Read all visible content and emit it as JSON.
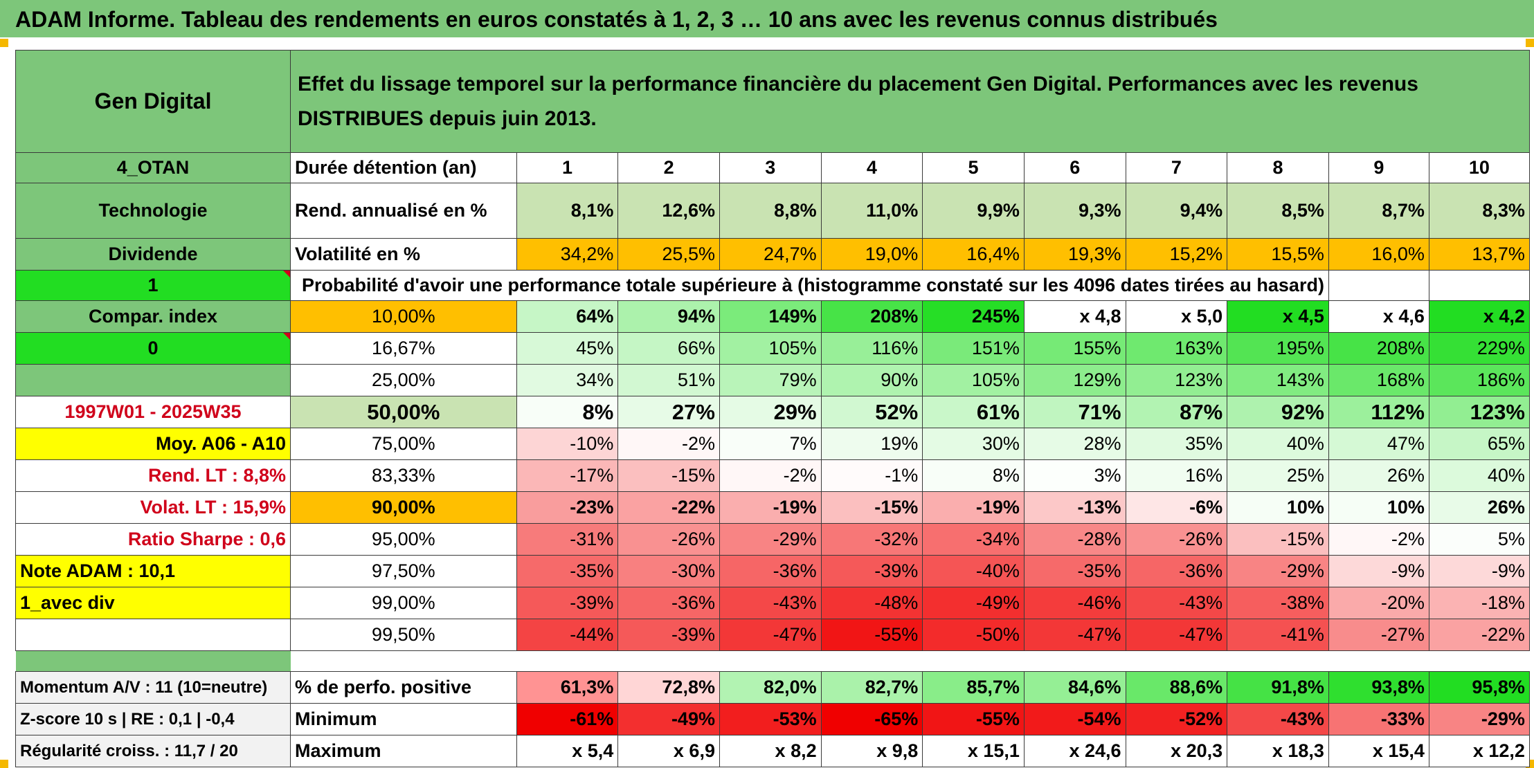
{
  "title": "ADAM Informe. Tableau des rendements en euros constatés à 1, 2, 3 … 10 ans avec les revenus connus distribués",
  "header": {
    "company": "Gen Digital",
    "description": "Effet du lissage temporel sur la performance financière du placement Gen Digital. Performances avec les revenus DISTRIBUES depuis juin 2013."
  },
  "labels": {
    "code": "4_OTAN",
    "sector": "Technologie",
    "dividend": "Dividende",
    "one": "1",
    "compar_index": "Compar. index",
    "zero": "0",
    "period": "1997W01 - 2025W35",
    "moy": "Moy. A06 - A10",
    "rend_lt": "Rend. LT :   8,8%",
    "volat_lt": "Volat. LT :   15,9%",
    "sharpe": "Ratio Sharpe :   0,6",
    "note_adam": "Note ADAM : 10,1",
    "avec_div": "1_avec div",
    "momentum": "Momentum A/V : 11 (10=neutre)",
    "zscore": "Z-score 10 s | RE : 0,1 | -0,4",
    "regularite": "Régularité croiss. : 11,7 / 20"
  },
  "rows": {
    "duree_label": "Durée détention (an)",
    "years": [
      "1",
      "2",
      "3",
      "4",
      "5",
      "6",
      "7",
      "8",
      "9",
      "10"
    ],
    "rend_label": "Rend. annualisé en %",
    "rend": [
      "8,1%",
      "12,6%",
      "8,8%",
      "11,0%",
      "9,9%",
      "9,3%",
      "9,4%",
      "8,5%",
      "8,7%",
      "8,3%"
    ],
    "vol_label": "Volatilité en %",
    "vol": [
      "34,2%",
      "25,5%",
      "24,7%",
      "19,0%",
      "16,4%",
      "19,3%",
      "15,2%",
      "15,5%",
      "16,0%",
      "13,7%"
    ],
    "prob_label": "Probabilité d'avoir une performance totale supérieure à (histogramme constaté sur les 4096 dates tirées au hasard)",
    "percentiles": [
      {
        "p": "10,00%",
        "v": [
          "64%",
          "94%",
          "149%",
          "208%",
          "245%",
          "x 4,8",
          "x 5,0",
          "x 4,5",
          "x 4,6",
          "x 4,2"
        ]
      },
      {
        "p": "16,67%",
        "v": [
          "45%",
          "66%",
          "105%",
          "116%",
          "151%",
          "155%",
          "163%",
          "195%",
          "208%",
          "229%"
        ]
      },
      {
        "p": "25,00%",
        "v": [
          "34%",
          "51%",
          "79%",
          "90%",
          "105%",
          "129%",
          "123%",
          "143%",
          "168%",
          "186%"
        ]
      },
      {
        "p": "50,00%",
        "v": [
          "8%",
          "27%",
          "29%",
          "52%",
          "61%",
          "71%",
          "87%",
          "92%",
          "112%",
          "123%"
        ]
      },
      {
        "p": "75,00%",
        "v": [
          "-10%",
          "-2%",
          "7%",
          "19%",
          "30%",
          "28%",
          "35%",
          "40%",
          "47%",
          "65%"
        ]
      },
      {
        "p": "83,33%",
        "v": [
          "-17%",
          "-15%",
          "-2%",
          "-1%",
          "8%",
          "3%",
          "16%",
          "25%",
          "26%",
          "40%"
        ]
      },
      {
        "p": "90,00%",
        "v": [
          "-23%",
          "-22%",
          "-19%",
          "-15%",
          "-19%",
          "-13%",
          "-6%",
          "10%",
          "10%",
          "26%"
        ]
      },
      {
        "p": "95,00%",
        "v": [
          "-31%",
          "-26%",
          "-29%",
          "-32%",
          "-34%",
          "-28%",
          "-26%",
          "-15%",
          "-2%",
          "5%"
        ]
      },
      {
        "p": "97,50%",
        "v": [
          "-35%",
          "-30%",
          "-36%",
          "-39%",
          "-40%",
          "-35%",
          "-36%",
          "-29%",
          "-9%",
          "-9%"
        ]
      },
      {
        "p": "99,00%",
        "v": [
          "-39%",
          "-36%",
          "-43%",
          "-48%",
          "-49%",
          "-46%",
          "-43%",
          "-38%",
          "-20%",
          "-18%"
        ]
      },
      {
        "p": "99,50%",
        "v": [
          "-44%",
          "-39%",
          "-47%",
          "-55%",
          "-50%",
          "-47%",
          "-47%",
          "-41%",
          "-27%",
          "-22%"
        ]
      }
    ],
    "pos_label": "% de perfo. positive",
    "pos": [
      "61,3%",
      "72,8%",
      "82,0%",
      "82,7%",
      "85,7%",
      "84,6%",
      "88,6%",
      "91,8%",
      "93,8%",
      "95,8%"
    ],
    "min_label": "Minimum",
    "min": [
      "-61%",
      "-49%",
      "-53%",
      "-65%",
      "-55%",
      "-54%",
      "-52%",
      "-43%",
      "-33%",
      "-29%"
    ],
    "max_label": "Maximum",
    "max": [
      "x 5,4",
      "x 6,9",
      "x 8,2",
      "x 9,8",
      "x 15,1",
      "x 24,6",
      "x 20,3",
      "x 18,3",
      "x 15,4",
      "x 12,2"
    ]
  },
  "colors": {
    "header_green": "#7dc67a",
    "bright_green": "#22dd22",
    "yellow": "#ffff00",
    "orange": "#ffbf00",
    "red_text": "#d0021b"
  }
}
